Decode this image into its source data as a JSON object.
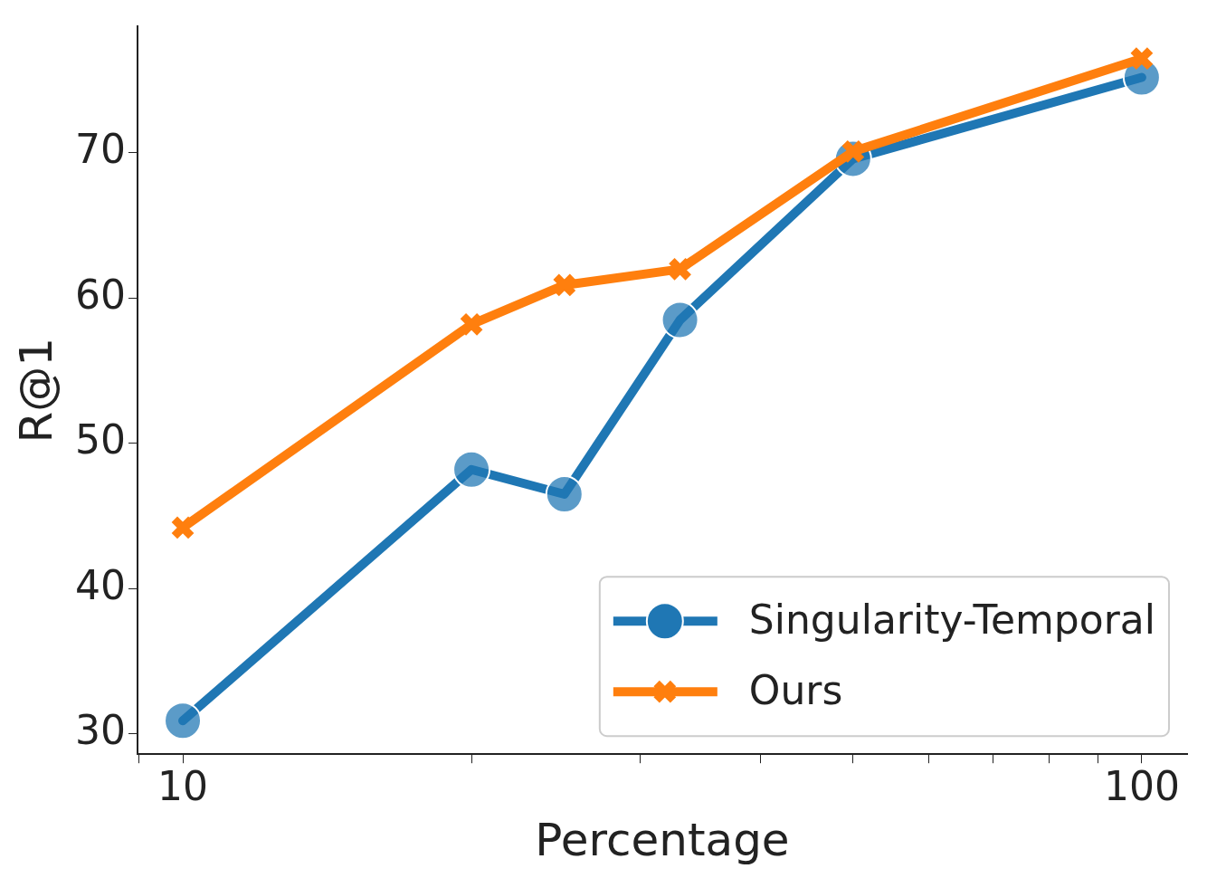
{
  "chart_data": {
    "type": "line",
    "xlabel": "Percentage",
    "ylabel": "R@1",
    "x": [
      10,
      20,
      25,
      33,
      50,
      100
    ],
    "series": [
      {
        "name": "Singularity-Temporal",
        "color": "#1f77b4",
        "marker": "circle",
        "values": [
          30.9,
          48.2,
          46.5,
          58.5,
          69.6,
          75.2
        ]
      },
      {
        "name": "Ours",
        "color": "#ff7f0e",
        "marker": "cross",
        "values": [
          44.2,
          58.2,
          60.9,
          62.0,
          70.1,
          76.5
        ]
      }
    ],
    "log": "x",
    "xlim": [
      8.97,
      111.5
    ],
    "xticks": [
      {
        "value": 9,
        "label": null
      },
      10,
      {
        "value": 20,
        "label": null
      },
      {
        "value": 30,
        "label": null
      },
      {
        "value": 40,
        "label": null
      },
      {
        "value": 50,
        "label": null
      },
      {
        "value": 60,
        "label": null
      },
      {
        "value": 70,
        "label": null
      },
      {
        "value": 80,
        "label": null
      },
      {
        "value": 90,
        "label": null
      },
      100
    ],
    "ylim": [
      28.6,
      78.7
    ],
    "yticks": [
      30,
      40,
      50,
      60,
      70
    ],
    "grid": false,
    "legend": "bottom right"
  }
}
